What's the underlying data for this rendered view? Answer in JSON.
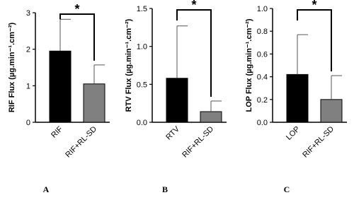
{
  "chart_data": [
    {
      "type": "bar",
      "y_label": "RIF Flux (µg.min⁻¹.cm⁻²)",
      "panel_label": "A",
      "annotation": "*",
      "categories": [
        "RIF",
        "RIF+RL-SD"
      ],
      "values": [
        1.95,
        1.05
      ],
      "errors": [
        0.87,
        0.52
      ],
      "colors": [
        "#000000",
        "#808080"
      ],
      "ylim": [
        0,
        3
      ],
      "yticks": [
        0,
        1,
        2,
        3
      ]
    },
    {
      "type": "bar",
      "y_label": "RTV Flux (µg.min⁻¹.cm⁻²)",
      "panel_label": "B",
      "annotation": "*",
      "categories": [
        "RTV",
        "RIF+RL-SD"
      ],
      "values": [
        0.58,
        0.14
      ],
      "errors": [
        0.69,
        0.14
      ],
      "colors": [
        "#000000",
        "#808080"
      ],
      "ylim": [
        0,
        1.5
      ],
      "yticks": [
        {
          "value": 0,
          "label": "0.0"
        },
        0.5,
        {
          "value": 1,
          "label": "1.0"
        },
        1.5
      ]
    },
    {
      "type": "bar",
      "y_label": "LOP Flux (µg.min⁻¹.cm⁻²)",
      "panel_label": "C",
      "annotation": "*",
      "categories": [
        "LOP",
        "RIF+RL-SD"
      ],
      "values": [
        0.42,
        0.2
      ],
      "errors": [
        0.35,
        0.21
      ],
      "colors": [
        "#000000",
        "#808080"
      ],
      "ylim": [
        0,
        1
      ],
      "yticks": [
        {
          "value": 0,
          "label": "0.0"
        },
        0.2,
        0.4,
        0.6,
        0.8,
        {
          "value": 1,
          "label": "1.0"
        }
      ]
    }
  ]
}
